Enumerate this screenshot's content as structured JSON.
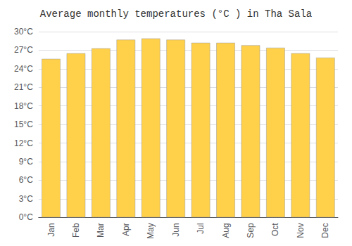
{
  "chart_data": {
    "type": "bar",
    "title": "Average monthly temperatures (°C ) in Tha Sala",
    "categories": [
      "Jan",
      "Feb",
      "Mar",
      "Apr",
      "May",
      "Jun",
      "Jul",
      "Aug",
      "Sep",
      "Oct",
      "Nov",
      "Dec"
    ],
    "values": [
      25.6,
      26.5,
      27.3,
      28.7,
      28.9,
      28.7,
      28.2,
      28.2,
      27.8,
      27.4,
      26.5,
      25.8
    ],
    "color": "#FFD04A",
    "ylim": [
      0,
      30
    ],
    "yticks": [
      {
        "value": 0,
        "label": "0°C"
      },
      {
        "value": 3,
        "label": "3°C"
      },
      {
        "value": 6,
        "label": "6°C"
      },
      {
        "value": 9,
        "label": "9°C"
      },
      {
        "value": 12,
        "label": "12°C"
      },
      {
        "value": 15,
        "label": "15°C"
      },
      {
        "value": 18,
        "label": "18°C"
      },
      {
        "value": 21,
        "label": "21°C"
      },
      {
        "value": 24,
        "label": "24°C"
      },
      {
        "value": 27,
        "label": "27°C"
      },
      {
        "value": 30,
        "label": "30°C"
      }
    ],
    "grid": true
  }
}
